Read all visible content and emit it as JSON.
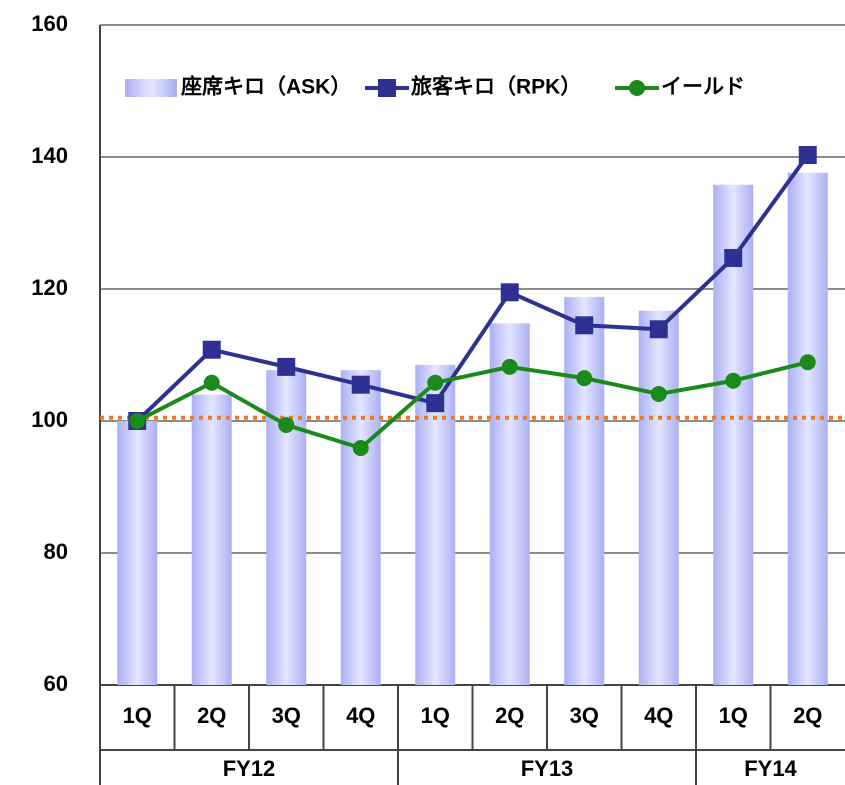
{
  "chart_data": {
    "type": "bar",
    "groups": [
      {
        "name": "FY12",
        "categories": [
          "1Q",
          "2Q",
          "3Q",
          "4Q"
        ]
      },
      {
        "name": "FY13",
        "categories": [
          "1Q",
          "2Q",
          "3Q",
          "4Q"
        ]
      },
      {
        "name": "FY14",
        "categories": [
          "1Q",
          "2Q"
        ]
      }
    ],
    "series": [
      {
        "name": "座席キロ（ASK）",
        "type": "bar",
        "color": "#aab0f2",
        "values": [
          100,
          104,
          107.7,
          107.7,
          108.5,
          114.8,
          118.8,
          116.7,
          135.8,
          137.6
        ]
      },
      {
        "name": "旅客キロ（RPK）",
        "type": "line",
        "marker": "square",
        "color": "#2e3192",
        "values": [
          100,
          110.8,
          108.2,
          105.5,
          102.7,
          119.5,
          114.5,
          113.9,
          124.7,
          140.3
        ]
      },
      {
        "name": "イールド",
        "type": "line",
        "marker": "circle",
        "color": "#1a8a1a",
        "values": [
          100,
          105.8,
          99.4,
          95.9,
          105.8,
          108.2,
          106.5,
          104.1,
          106.1,
          108.9
        ]
      }
    ],
    "reference_line": {
      "value": 100.5,
      "color": "#f07820"
    },
    "ylim": [
      60,
      160
    ],
    "yticks": [
      60,
      80,
      100,
      120,
      140,
      160
    ],
    "grid": true
  }
}
